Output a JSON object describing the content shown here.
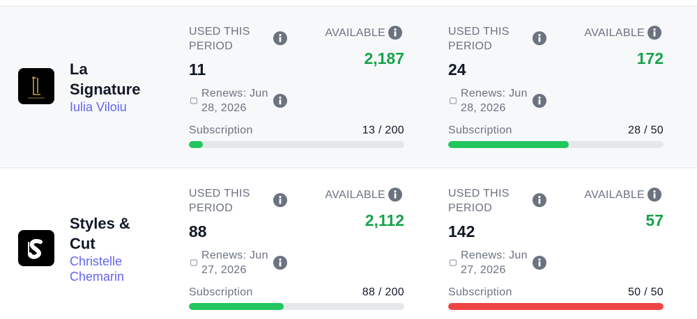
{
  "rows": [
    {
      "name": "La Signature",
      "owner": "Iulia Viloiu",
      "logo": "LS",
      "cards": [
        {
          "used_label": "USED THIS PERIOD",
          "used": "11",
          "available_label": "AVAILABLE",
          "available": "2,187",
          "renews": "Renews: Jun 28, 2026",
          "subscription_label": "Subscription",
          "usage_label": "13 / 200",
          "usage": 13,
          "limit": 200,
          "bar_color": "#22c55e"
        },
        {
          "used_label": "USED THIS PERIOD",
          "used": "24",
          "available_label": "AVAILABLE",
          "available": "172",
          "renews": "Renews: Jun 28, 2026",
          "subscription_label": "Subscription",
          "usage_label": "28 / 50",
          "usage": 28,
          "limit": 50,
          "bar_color": "#22c55e"
        }
      ]
    },
    {
      "name": "Styles & Cut",
      "owner": "Christelle Chemarin",
      "logo": "S",
      "cards": [
        {
          "used_label": "USED THIS PERIOD",
          "used": "88",
          "available_label": "AVAILABLE",
          "available": "2,112",
          "renews": "Renews: Jun 27, 2026",
          "subscription_label": "Subscription",
          "usage_label": "88 / 200",
          "usage": 88,
          "limit": 200,
          "bar_color": "#22c55e"
        },
        {
          "used_label": "USED THIS PERIOD",
          "used": "142",
          "available_label": "AVAILABLE",
          "available": "57",
          "renews": "Renews: Jun 27, 2026",
          "subscription_label": "Subscription",
          "usage_label": "50 / 50",
          "usage": 50,
          "limit": 50,
          "bar_color": "#ef4444"
        }
      ]
    }
  ]
}
